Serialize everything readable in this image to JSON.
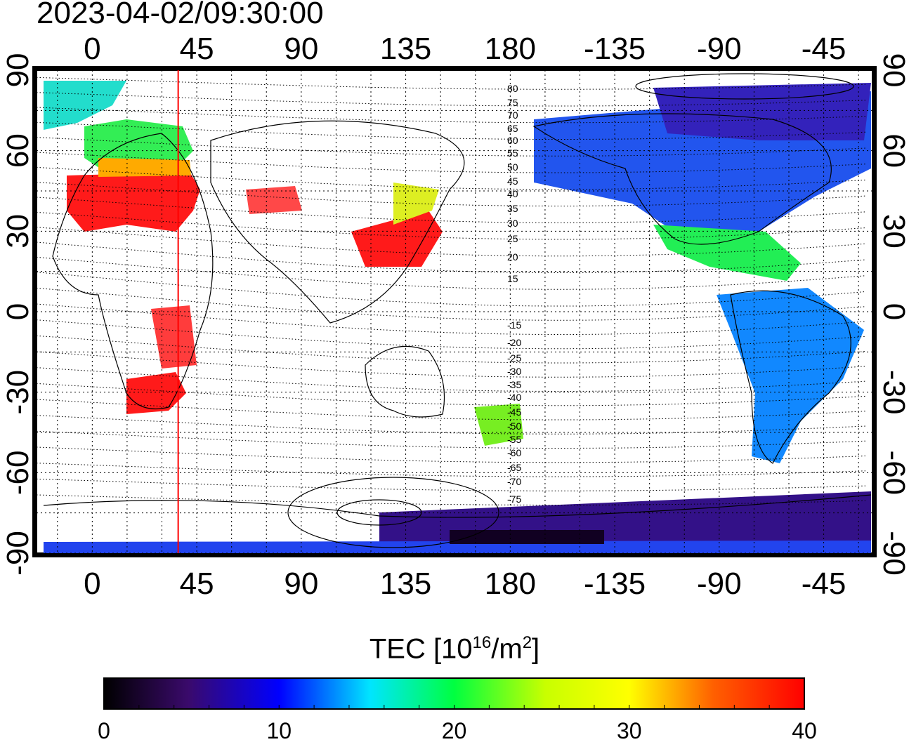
{
  "timestamp": "2023-04-02/09:30:00",
  "lon_ticks": [
    "0",
    "45",
    "90",
    "135",
    "180",
    "-135",
    "-90",
    "-45"
  ],
  "lat_ticks": [
    "90",
    "60",
    "30",
    "0",
    "-30",
    "-60",
    "-90"
  ],
  "contour_labels": [
    "80",
    "75",
    "70",
    "65",
    "60",
    "55",
    "50",
    "45",
    "40",
    "35",
    "30",
    "25",
    "20",
    "15",
    "-15",
    "-20",
    "-25",
    "-30",
    "-35",
    "-40",
    "-45",
    "-50",
    "-55",
    "-60",
    "-65",
    "-70",
    "-75"
  ],
  "marker_longitude": 37,
  "colorbar": {
    "title_prefix": "TEC  [10",
    "title_exp": "16",
    "title_mid": "/m",
    "title_exp2": "2",
    "title_suffix": "]",
    "ticks": [
      "0",
      "10",
      "20",
      "30",
      "40"
    ],
    "range": [
      0,
      40
    ]
  },
  "colors": {
    "high": "#ff1a1a",
    "marker": "#ff0000"
  }
}
